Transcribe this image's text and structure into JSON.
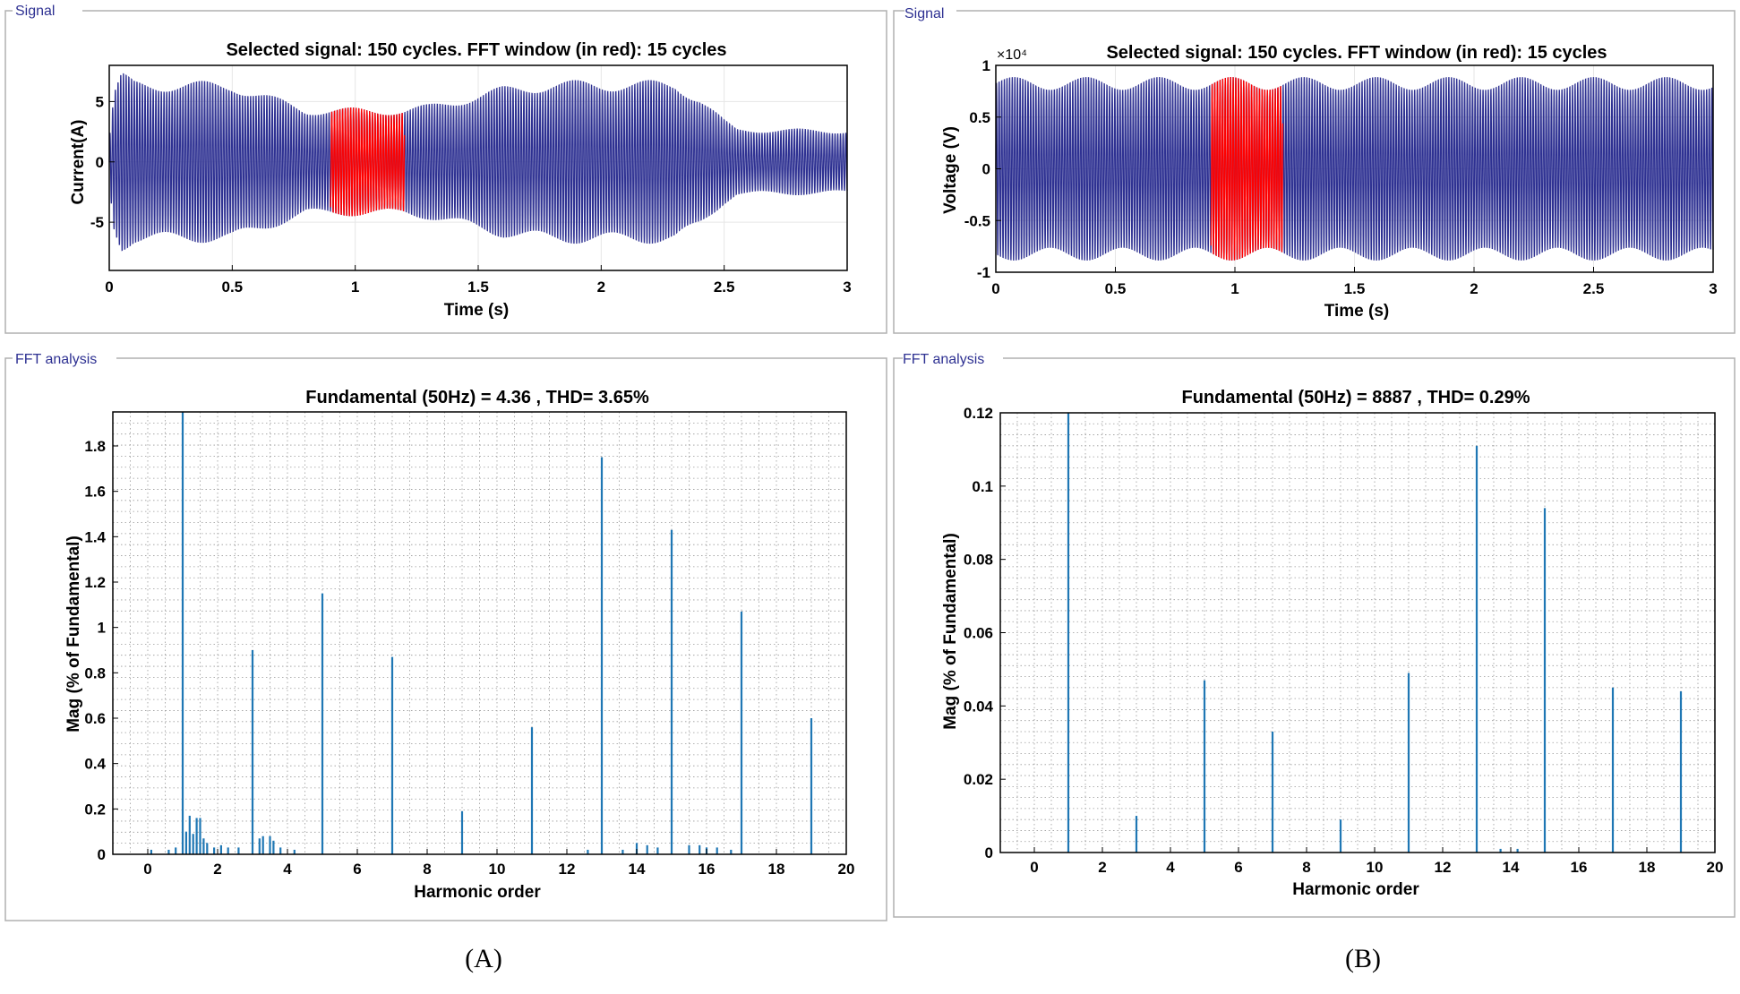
{
  "panels": [
    {
      "label": "(A)",
      "signal": {
        "group_title": "Signal",
        "title": "Selected signal: 150 cycles. FFT window (in red): 15 cycles",
        "xlabel": "Time (s)",
        "ylabel": "Current(A)",
        "exponent": "",
        "xticks": [
          0,
          0.5,
          1,
          1.5,
          2,
          2.5,
          3
        ],
        "yticks": [
          -5,
          0,
          5
        ],
        "ytick_labels": [
          "-5",
          "0",
          "5"
        ],
        "xlim": [
          0,
          3
        ],
        "ylim": [
          -9,
          8
        ],
        "frequency_hz": 50,
        "fft_window": [
          0.9,
          1.2
        ],
        "envelope": {
          "t": [
            0,
            0.02,
            0.05,
            0.1,
            0.5,
            0.8,
            1.2,
            1.3,
            1.6,
            1.8,
            2.1,
            2.3,
            2.4,
            2.5,
            2.55,
            3.0
          ],
          "amp": [
            2,
            6,
            7.5,
            6.8,
            6.7,
            4.5,
            4.5,
            4.8,
            6.3,
            6.8,
            6.8,
            6.8,
            5.5,
            3.5,
            2.8,
            2.7
          ]
        },
        "series_color": "#2e3192",
        "window_color": "#ff0000"
      },
      "fft": {
        "group_title": "FFT analysis",
        "title": "Fundamental (50Hz) = 4.36 , THD= 3.65%",
        "xlabel": "Harmonic order",
        "ylabel": "Mag (% of Fundamental)",
        "xticks": [
          0,
          2,
          4,
          6,
          8,
          10,
          12,
          14,
          16,
          18,
          20
        ],
        "yticks": [
          0,
          0.2,
          0.4,
          0.6,
          0.8,
          1,
          1.2,
          1.4,
          1.6,
          1.8
        ],
        "ytick_labels": [
          "0",
          "0.2",
          "0.4",
          "0.6",
          "0.8",
          "1",
          "1.2",
          "1.4",
          "1.6",
          "1.8"
        ],
        "xlim": [
          -1,
          20
        ],
        "ylim": [
          0,
          1.95
        ],
        "bar_color": "#1f77b4",
        "bars": [
          {
            "x": 1,
            "y": 1.95
          },
          {
            "x": 3,
            "y": 0.9
          },
          {
            "x": 5,
            "y": 1.15
          },
          {
            "x": 7,
            "y": 0.87
          },
          {
            "x": 9,
            "y": 0.19
          },
          {
            "x": 11,
            "y": 0.56
          },
          {
            "x": 13,
            "y": 1.75
          },
          {
            "x": 15,
            "y": 1.43
          },
          {
            "x": 17,
            "y": 1.07
          },
          {
            "x": 19,
            "y": 0.6
          },
          {
            "x": 0.1,
            "y": 0.02
          },
          {
            "x": 0.6,
            "y": 0.02
          },
          {
            "x": 0.8,
            "y": 0.03
          },
          {
            "x": 1.1,
            "y": 0.1
          },
          {
            "x": 1.2,
            "y": 0.17
          },
          {
            "x": 1.3,
            "y": 0.09
          },
          {
            "x": 1.4,
            "y": 0.16
          },
          {
            "x": 1.5,
            "y": 0.16
          },
          {
            "x": 1.6,
            "y": 0.07
          },
          {
            "x": 1.7,
            "y": 0.05
          },
          {
            "x": 1.9,
            "y": 0.03
          },
          {
            "x": 2.1,
            "y": 0.04
          },
          {
            "x": 2.3,
            "y": 0.03
          },
          {
            "x": 2.6,
            "y": 0.03
          },
          {
            "x": 3.2,
            "y": 0.07
          },
          {
            "x": 3.3,
            "y": 0.08
          },
          {
            "x": 3.5,
            "y": 0.08
          },
          {
            "x": 3.6,
            "y": 0.06
          },
          {
            "x": 3.8,
            "y": 0.03
          },
          {
            "x": 4.2,
            "y": 0.02
          },
          {
            "x": 12.6,
            "y": 0.02
          },
          {
            "x": 13.6,
            "y": 0.02
          },
          {
            "x": 14.0,
            "y": 0.05
          },
          {
            "x": 14.3,
            "y": 0.04
          },
          {
            "x": 14.6,
            "y": 0.03
          },
          {
            "x": 15.5,
            "y": 0.04
          },
          {
            "x": 15.8,
            "y": 0.04
          },
          {
            "x": 16.0,
            "y": 0.03
          },
          {
            "x": 16.3,
            "y": 0.03
          },
          {
            "x": 16.7,
            "y": 0.02
          }
        ]
      }
    },
    {
      "label": "(B)",
      "signal": {
        "group_title": "Signal",
        "title": "Selected signal: 150 cycles. FFT window (in red): 15 cycles",
        "xlabel": "Time (s)",
        "ylabel": "Voltage (V)",
        "exponent": "×10⁴",
        "xticks": [
          0,
          0.5,
          1,
          1.5,
          2,
          2.5,
          3
        ],
        "yticks": [
          -1,
          -0.5,
          0,
          0.5,
          1
        ],
        "ytick_labels": [
          "-1",
          "-0.5",
          "0",
          "0.5",
          "1"
        ],
        "xlim": [
          0,
          3
        ],
        "ylim": [
          -1,
          1
        ],
        "frequency_hz": 50,
        "fft_window": [
          0.9,
          1.2
        ],
        "envelope": {
          "t": [
            0,
            3
          ],
          "amp": [
            0.89,
            0.89
          ]
        },
        "series_color": "#2e3192",
        "window_color": "#ff0000"
      },
      "fft": {
        "group_title": "FFT analysis",
        "title": "Fundamental (50Hz) = 8887 , THD= 0.29%",
        "xlabel": "Harmonic order",
        "ylabel": "Mag (% of Fundamental)",
        "xticks": [
          0,
          2,
          4,
          6,
          8,
          10,
          12,
          14,
          16,
          18,
          20
        ],
        "yticks": [
          0,
          0.02,
          0.04,
          0.06,
          0.08,
          0.1,
          0.12
        ],
        "ytick_labels": [
          "0",
          "0.02",
          "0.04",
          "0.06",
          "0.08",
          "0.1",
          "0.12"
        ],
        "xlim": [
          -1,
          20
        ],
        "ylim": [
          0,
          0.12
        ],
        "bar_color": "#1f77b4",
        "bars": [
          {
            "x": 1,
            "y": 0.12
          },
          {
            "x": 3,
            "y": 0.01
          },
          {
            "x": 5,
            "y": 0.047
          },
          {
            "x": 7,
            "y": 0.033
          },
          {
            "x": 9,
            "y": 0.009
          },
          {
            "x": 11,
            "y": 0.049
          },
          {
            "x": 13,
            "y": 0.111
          },
          {
            "x": 15,
            "y": 0.094
          },
          {
            "x": 17,
            "y": 0.045
          },
          {
            "x": 19,
            "y": 0.044
          },
          {
            "x": 13.7,
            "y": 0.001
          },
          {
            "x": 14.2,
            "y": 0.001
          }
        ]
      }
    }
  ]
}
